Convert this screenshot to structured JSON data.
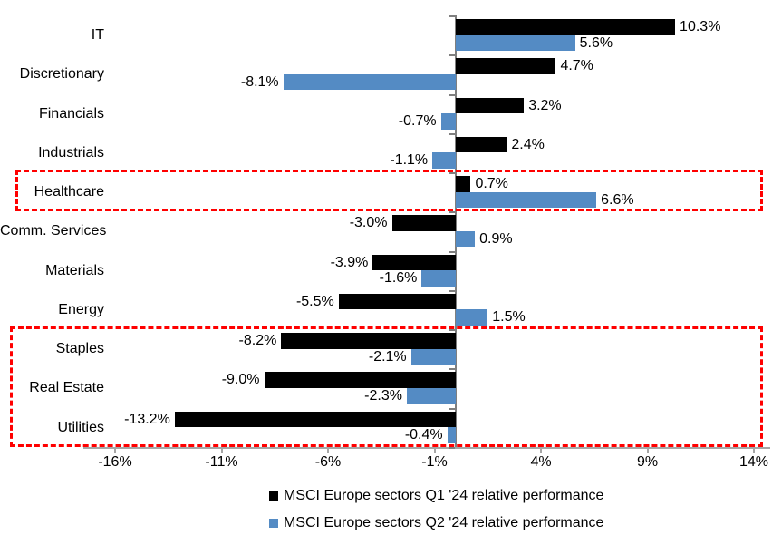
{
  "chart_data": {
    "type": "bar",
    "orientation": "horizontal",
    "title": "",
    "categories": [
      "IT",
      "Discretionary",
      "Financials",
      "Industrials",
      "Healthcare",
      "Comm. Services",
      "Materials",
      "Energy",
      "Staples",
      "Real Estate",
      "Utilities"
    ],
    "series": [
      {
        "name": "MSCI Europe sectors Q1 '24 relative performance",
        "color": "#000000",
        "values": [
          10.3,
          4.7,
          3.2,
          2.4,
          0.7,
          -3.0,
          -3.9,
          -5.5,
          -8.2,
          -9.0,
          -13.2
        ]
      },
      {
        "name": "MSCI Europe sectors Q2 '24 relative performance",
        "color": "#548BC4",
        "values": [
          5.6,
          -8.1,
          -0.7,
          -1.1,
          6.6,
          0.9,
          -1.6,
          1.5,
          -2.1,
          -2.3,
          -0.4
        ]
      }
    ],
    "value_suffix": "%",
    "x_ticks": [
      "-16%",
      "-11%",
      "-6%",
      "-1%",
      "4%",
      "9%",
      "14%"
    ],
    "x_tick_values": [
      -16,
      -11,
      -6,
      -1,
      4,
      9,
      14
    ],
    "xlim": [
      -17.5,
      14.75
    ],
    "grid": false,
    "legend_position": "bottom",
    "data_labels": true,
    "highlight_color": "#FF0000",
    "highlighted_categories": [
      [
        "Healthcare"
      ],
      [
        "Staples",
        "Real Estate",
        "Utilities"
      ]
    ]
  }
}
